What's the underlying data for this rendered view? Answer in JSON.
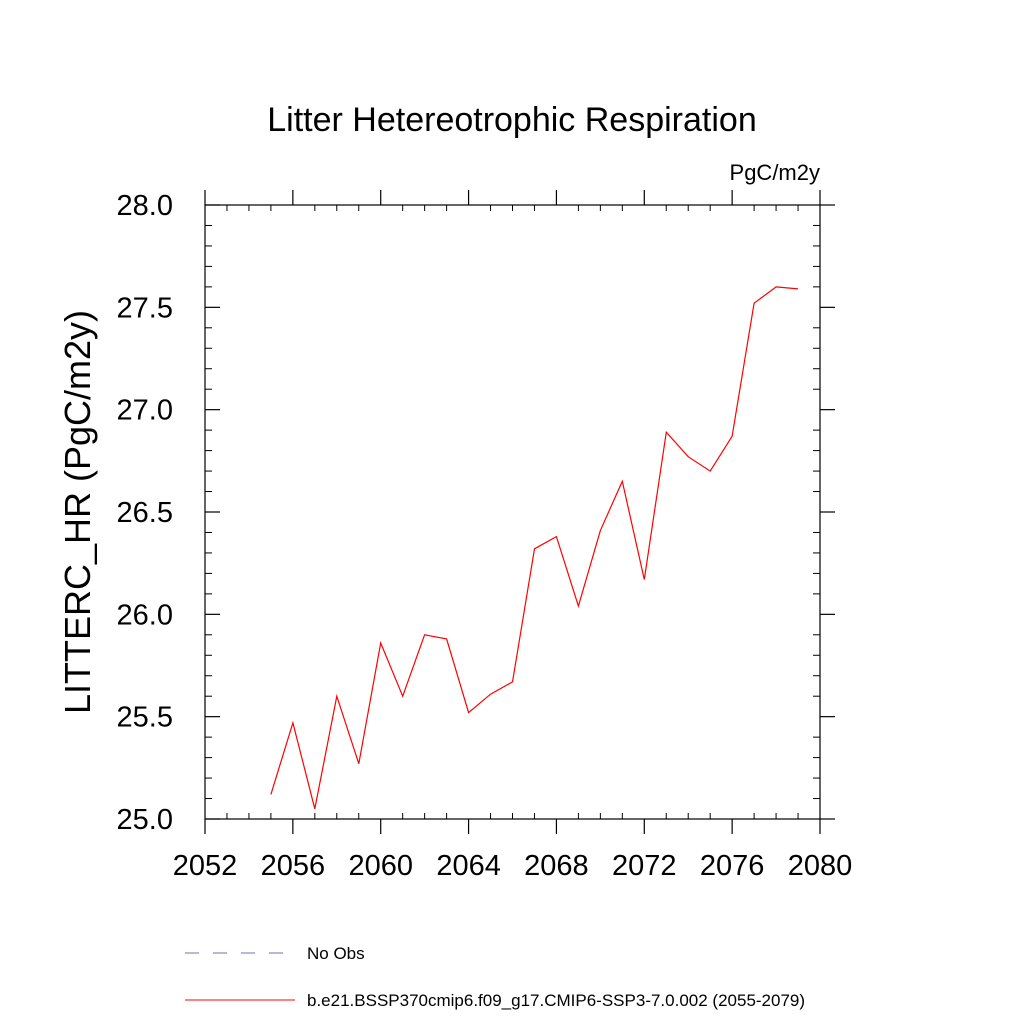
{
  "chart_data": {
    "type": "line",
    "title": "Litter Hetereotrophic Respiration",
    "units_label": "PgC/m2y",
    "ylabel": "LITTERC_HR  (PgC/m2y)",
    "xlabel": "",
    "xlim": [
      2052,
      2080
    ],
    "ylim": [
      25.0,
      28.0
    ],
    "x_ticks": [
      2052,
      2056,
      2060,
      2064,
      2068,
      2072,
      2076,
      2080
    ],
    "y_ticks": [
      "25.0",
      "25.5",
      "26.0",
      "26.5",
      "27.0",
      "27.5",
      "28.0"
    ],
    "grid": false,
    "legend_position": "bottom",
    "series": [
      {
        "name": "b.e21.BSSP370cmip6.f09_g17.CMIP6-SSP3-7.0.002 (2055-2079)",
        "color": "#ff0000",
        "style": "solid",
        "x": [
          2055,
          2056,
          2057,
          2058,
          2059,
          2060,
          2061,
          2062,
          2063,
          2064,
          2065,
          2066,
          2067,
          2068,
          2069,
          2070,
          2071,
          2072,
          2073,
          2074,
          2075,
          2076,
          2077,
          2078,
          2079
        ],
        "values": [
          25.12,
          25.47,
          25.05,
          25.6,
          25.27,
          25.86,
          25.6,
          25.9,
          25.88,
          25.52,
          25.61,
          25.67,
          26.32,
          26.38,
          26.04,
          26.41,
          26.65,
          26.17,
          26.89,
          26.77,
          26.7,
          26.87,
          27.52,
          27.6,
          27.59
        ]
      },
      {
        "name": "No Obs",
        "color": "#7070b0",
        "style": "dashed",
        "x": [],
        "values": []
      }
    ]
  }
}
